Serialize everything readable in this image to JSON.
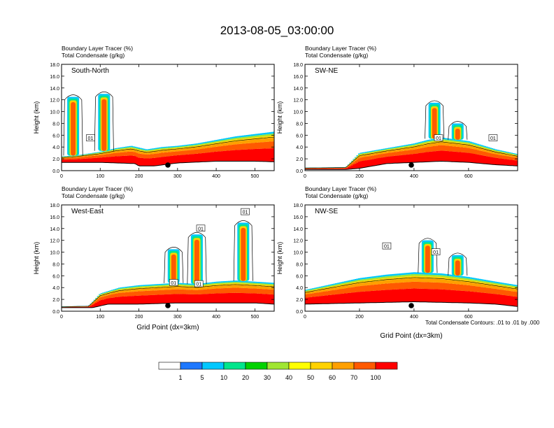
{
  "figure": {
    "title": "2013-08-05_03:00:00",
    "contour_note": "Total Condensate Contours: .01 to .01 by .000",
    "x_label": "Grid Point (dx=3km)",
    "y_label": "Height (km)"
  },
  "colorbar": {
    "colors": [
      "#ffffff",
      "#1e78ff",
      "#00c8ff",
      "#00e68c",
      "#00d200",
      "#a0e632",
      "#ffff00",
      "#ffd200",
      "#ffa000",
      "#ff5a00",
      "#ff0000"
    ],
    "labels": [
      "1",
      "5",
      "10",
      "20",
      "30",
      "40",
      "50",
      "60",
      "70",
      "100"
    ]
  },
  "chart_data": [
    {
      "type": "heatmap",
      "panel": "South-North",
      "title_lines": [
        "Boundary Layer Tracer   (%)",
        "Total Condensate   (g/kg)"
      ],
      "xlim": [
        0,
        550
      ],
      "xticks": [
        0,
        100,
        200,
        300,
        400,
        500
      ],
      "ylim": [
        0,
        18
      ],
      "yticks": [
        "0.0",
        "2.0",
        "4.0",
        "6.0",
        "8.0",
        "10.0",
        "12.0",
        "14.0",
        "16.0",
        "18.0"
      ],
      "marker_x": 275,
      "terrain": [
        [
          0,
          1.4
        ],
        [
          100,
          1.4
        ],
        [
          190,
          1.2
        ],
        [
          200,
          0.8
        ],
        [
          240,
          0.8
        ],
        [
          300,
          1.3
        ],
        [
          400,
          1.6
        ],
        [
          500,
          1.6
        ],
        [
          550,
          1.5
        ]
      ],
      "pbl_top": [
        [
          0,
          2.4
        ],
        [
          40,
          2.6
        ],
        [
          100,
          3.2
        ],
        [
          140,
          3.8
        ],
        [
          180,
          4.2
        ],
        [
          220,
          3.6
        ],
        [
          260,
          4.0
        ],
        [
          300,
          4.2
        ],
        [
          350,
          4.6
        ],
        [
          400,
          5.2
        ],
        [
          450,
          5.8
        ],
        [
          500,
          6.2
        ],
        [
          550,
          6.6
        ]
      ],
      "plumes": [
        [
          30,
          12.5
        ],
        [
          110,
          13.0
        ]
      ],
      "labels01": [
        [
          75,
          5.5
        ]
      ]
    },
    {
      "type": "heatmap",
      "panel": "SW-NE",
      "title_lines": [
        "Boundary Layer Tracer   (%)",
        "Total Condensate   (g/kg)"
      ],
      "xlim": [
        0,
        780
      ],
      "xticks": [
        0,
        200,
        400,
        600
      ],
      "ylim": [
        0,
        18
      ],
      "yticks": [
        "0.0",
        "2.0",
        "4.0",
        "6.0",
        "8.0",
        "10.0",
        "12.0",
        "14.0",
        "16.0",
        "18.0"
      ],
      "marker_x": 390,
      "terrain": [
        [
          0,
          0.2
        ],
        [
          150,
          0.2
        ],
        [
          200,
          0.4
        ],
        [
          300,
          1.2
        ],
        [
          400,
          1.4
        ],
        [
          500,
          1.6
        ],
        [
          600,
          1.4
        ],
        [
          700,
          1.0
        ],
        [
          780,
          0.8
        ]
      ],
      "pbl_top": [
        [
          0,
          0.5
        ],
        [
          150,
          0.6
        ],
        [
          200,
          3.0
        ],
        [
          300,
          3.8
        ],
        [
          400,
          4.6
        ],
        [
          450,
          5.2
        ],
        [
          500,
          5.6
        ],
        [
          600,
          5.0
        ],
        [
          700,
          3.6
        ],
        [
          780,
          2.8
        ]
      ],
      "plumes": [
        [
          475,
          11.5
        ],
        [
          560,
          8.0
        ]
      ],
      "labels01": [
        [
          490,
          5.5
        ],
        [
          690,
          5.5
        ]
      ]
    },
    {
      "type": "heatmap",
      "panel": "West-East",
      "title_lines": [
        "Boundary Layer Tracer   (%)",
        "Total Condensate   (g/kg)"
      ],
      "xlim": [
        0,
        550
      ],
      "xticks": [
        0,
        100,
        200,
        300,
        400,
        500
      ],
      "ylim": [
        0,
        18
      ],
      "yticks": [
        "0.0",
        "2.0",
        "4.0",
        "6.0",
        "8.0",
        "10.0",
        "12.0",
        "14.0",
        "16.0",
        "18.0"
      ],
      "marker_x": 275,
      "terrain": [
        [
          0,
          0.6
        ],
        [
          80,
          0.6
        ],
        [
          120,
          1.2
        ],
        [
          200,
          1.2
        ],
        [
          300,
          1.4
        ],
        [
          400,
          1.4
        ],
        [
          500,
          1.4
        ],
        [
          550,
          1.2
        ]
      ],
      "pbl_top": [
        [
          0,
          0.8
        ],
        [
          70,
          0.9
        ],
        [
          100,
          3.0
        ],
        [
          150,
          4.0
        ],
        [
          200,
          4.4
        ],
        [
          250,
          4.6
        ],
        [
          300,
          4.8
        ],
        [
          350,
          4.6
        ],
        [
          400,
          5.0
        ],
        [
          450,
          5.2
        ],
        [
          500,
          5.0
        ],
        [
          550,
          4.8
        ]
      ],
      "plumes": [
        [
          290,
          10.5
        ],
        [
          350,
          13.0
        ],
        [
          470,
          15.0
        ]
      ],
      "labels01": [
        [
          290,
          4.8
        ],
        [
          360,
          14.0
        ],
        [
          355,
          4.6
        ],
        [
          475,
          16.8
        ]
      ]
    },
    {
      "type": "heatmap",
      "panel": "NW-SE",
      "title_lines": [
        "Boundary Layer Tracer   (%)",
        "Total Condensate   (g/kg)"
      ],
      "xlim": [
        0,
        780
      ],
      "xticks": [
        0,
        200,
        400,
        600
      ],
      "ylim": [
        0,
        18
      ],
      "yticks": [
        "0.0",
        "2.0",
        "4.0",
        "6.0",
        "8.0",
        "10.0",
        "12.0",
        "14.0",
        "16.0",
        "18.0"
      ],
      "marker_x": 390,
      "terrain": [
        [
          0,
          1.2
        ],
        [
          200,
          1.4
        ],
        [
          400,
          1.6
        ],
        [
          600,
          1.4
        ],
        [
          700,
          1.2
        ],
        [
          780,
          0.8
        ]
      ],
      "pbl_top": [
        [
          0,
          3.6
        ],
        [
          100,
          4.6
        ],
        [
          200,
          5.6
        ],
        [
          300,
          6.2
        ],
        [
          400,
          6.6
        ],
        [
          500,
          6.4
        ],
        [
          600,
          5.8
        ],
        [
          700,
          5.0
        ],
        [
          780,
          4.4
        ]
      ],
      "plumes": [
        [
          450,
          12.0
        ],
        [
          560,
          9.5
        ]
      ],
      "labels01": [
        [
          300,
          11.0
        ],
        [
          480,
          10.0
        ]
      ]
    }
  ]
}
